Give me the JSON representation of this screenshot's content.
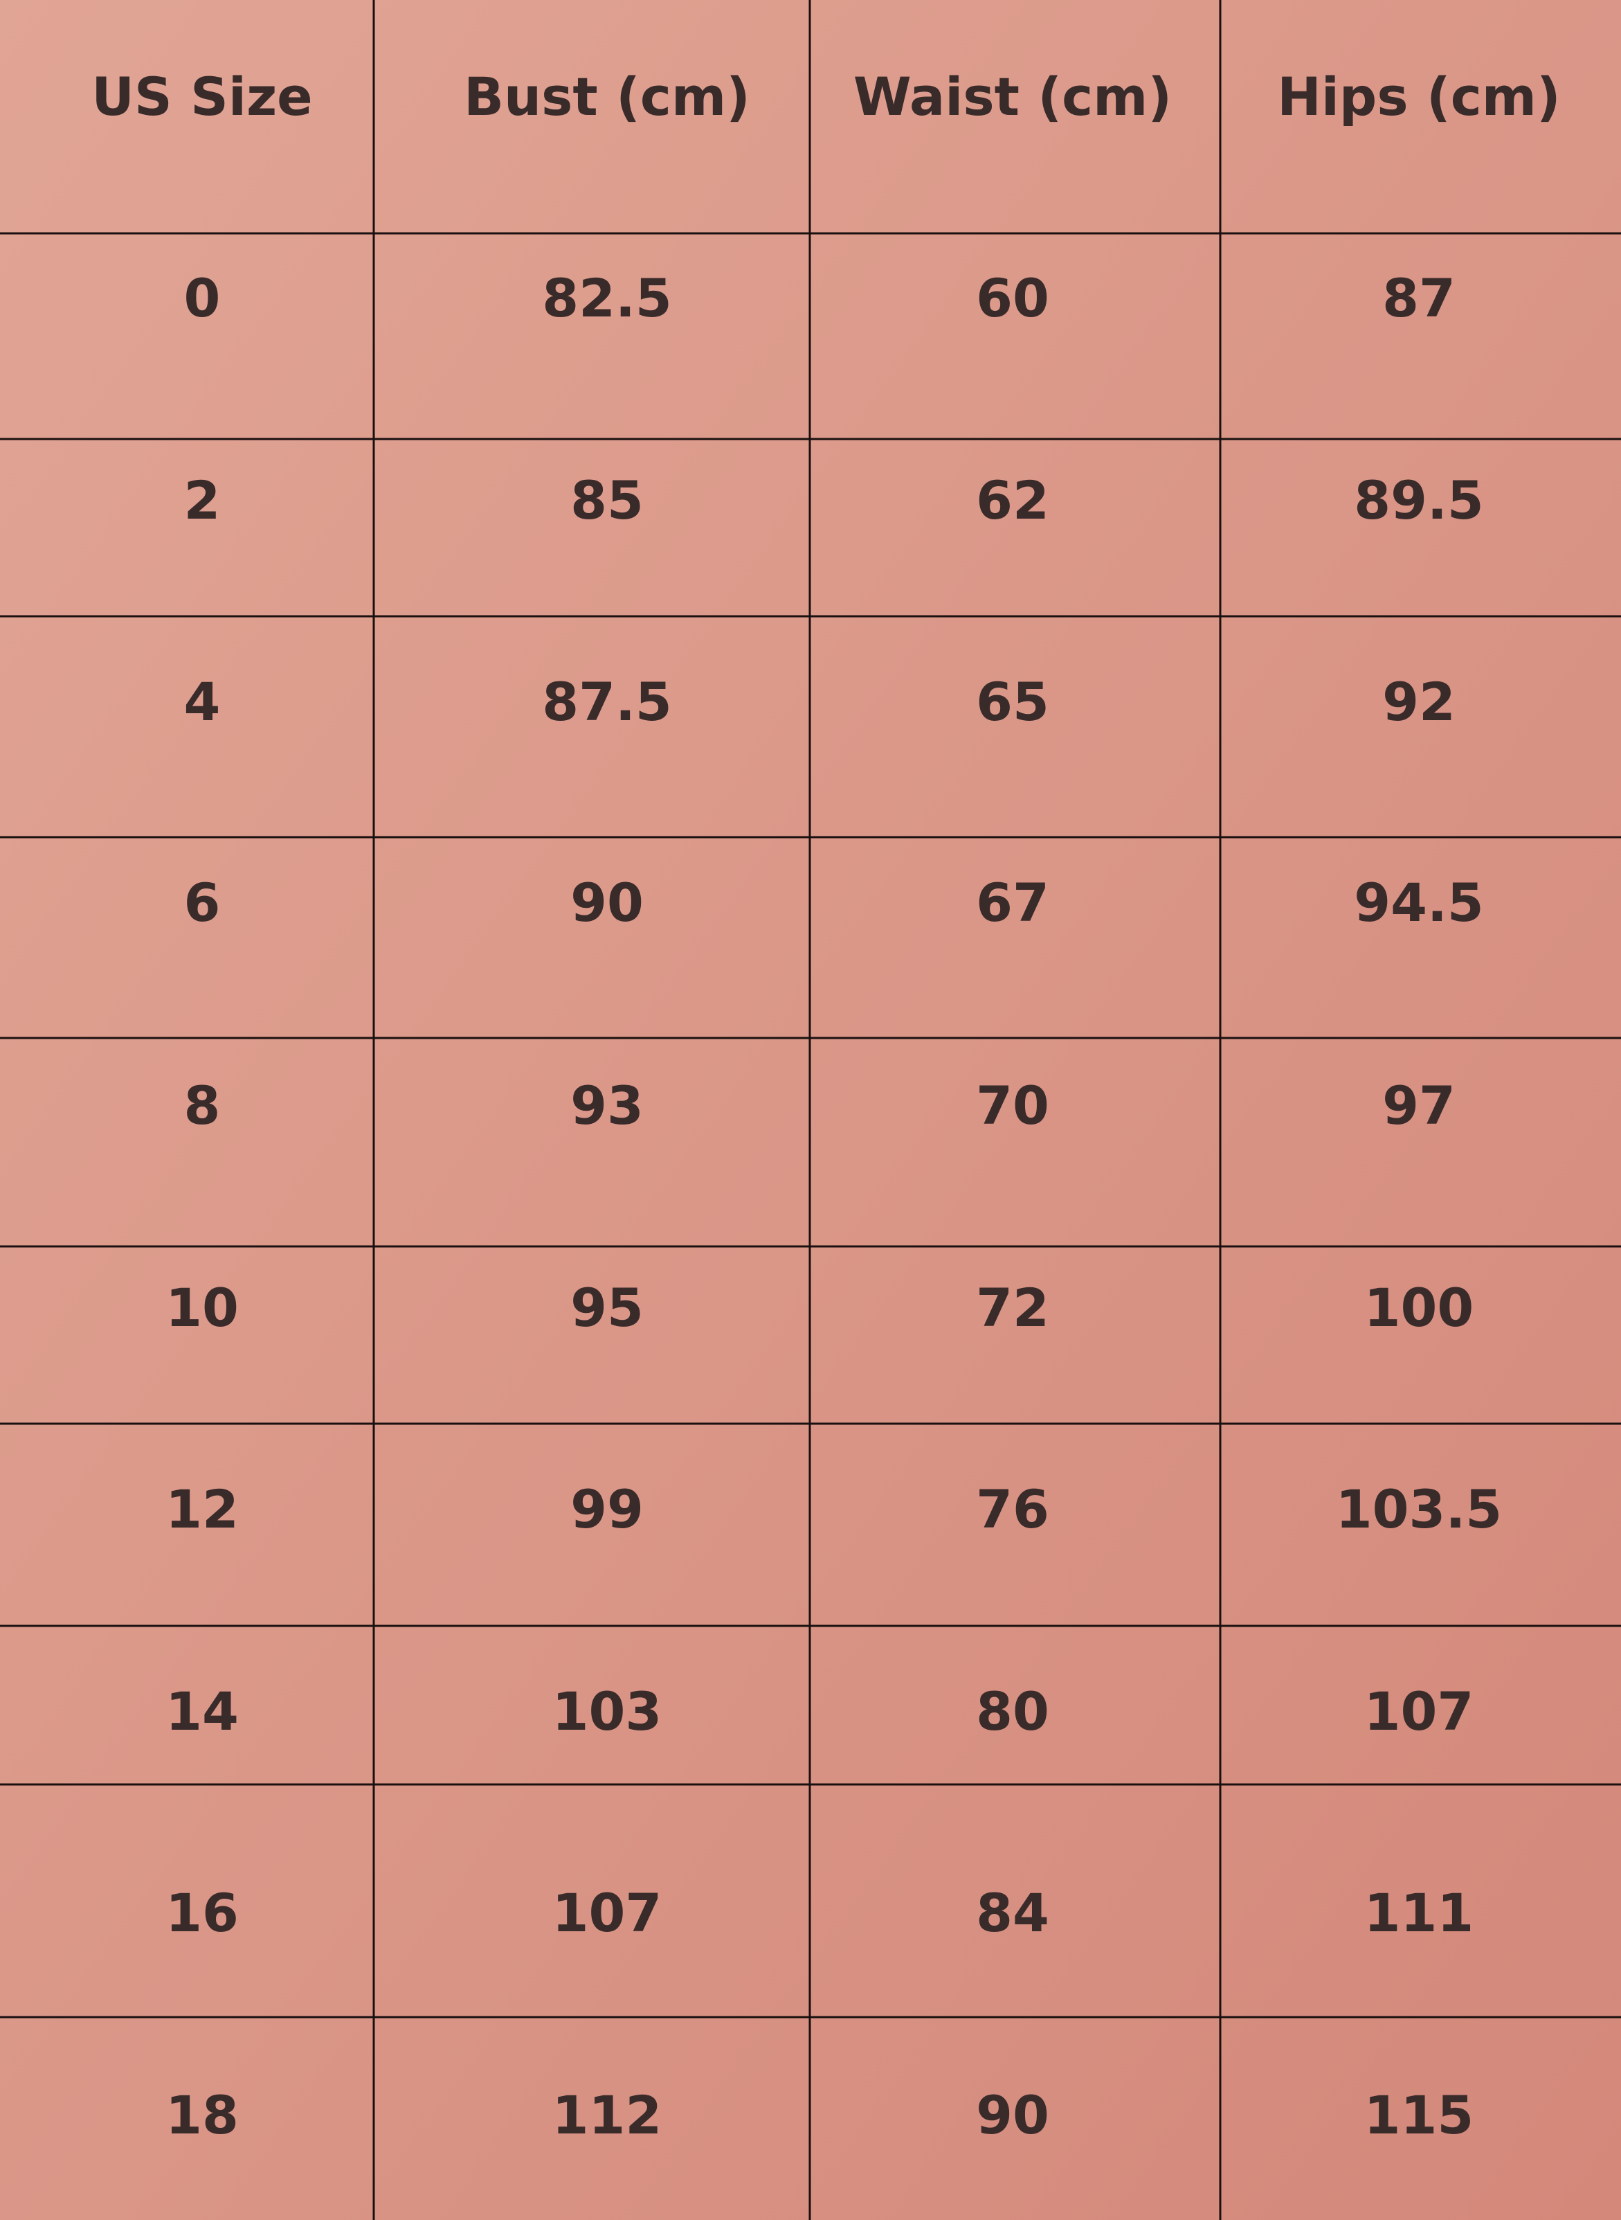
{
  "table": {
    "header": [
      "US Size",
      "Bust (cm)",
      "Waist (cm)",
      "Hips (cm)"
    ],
    "rows": [
      [
        0,
        82.5,
        60,
        87
      ],
      [
        2,
        85,
        62,
        89.5
      ],
      [
        4,
        87.5,
        65,
        92
      ],
      [
        6,
        90,
        67,
        94.5
      ],
      [
        8,
        93,
        70,
        97
      ],
      [
        10,
        95,
        72,
        100
      ],
      [
        12,
        99,
        76,
        103.5
      ],
      [
        14,
        103,
        80,
        107
      ],
      [
        16,
        107,
        84,
        111
      ],
      [
        18,
        112,
        90,
        115
      ]
    ]
  }
}
